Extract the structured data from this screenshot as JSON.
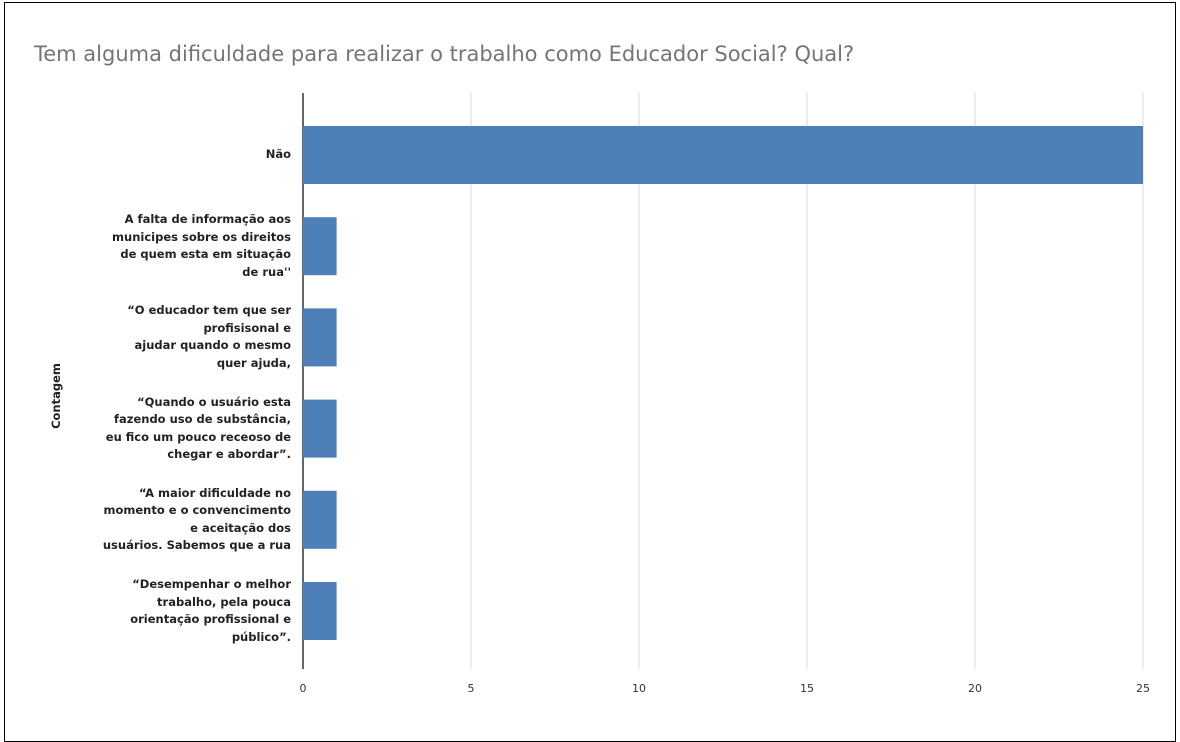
{
  "chart_data": {
    "type": "bar",
    "orientation": "horizontal",
    "title": "Tem alguma dificuldade para realizar o trabalho como Educador Social? Qual?",
    "ylabel": "Contagem",
    "xlabel": "",
    "categories": [
      [
        "Não"
      ],
      [
        "A falta de informação aos",
        "municipes sobre os direitos",
        "de quem esta em situação",
        "de rua''"
      ],
      [
        "“O educador tem que ser",
        "profisisonal e",
        "ajudar  quando o mesmo",
        "quer ajuda,"
      ],
      [
        "“Quando o usuário esta",
        "fazendo uso de substância,",
        "eu fico um pouco receoso de",
        "chegar e abordar”."
      ],
      [
        "“A maior dificuldade no",
        "momento e o convencimento",
        "e aceitação dos",
        "usuários. Sabemos que a rua"
      ],
      [
        "“Desempenhar o melhor",
        "trabalho, pela pouca",
        "orientação profissional e",
        "público”."
      ]
    ],
    "values": [
      25,
      1,
      1,
      1,
      1,
      1
    ],
    "xlim": [
      0,
      25
    ],
    "xticks": [
      0,
      5,
      10,
      15,
      20,
      25
    ],
    "grid": true,
    "bar_color": "#4f7fb9",
    "gridline_color": "#d9d9d9"
  }
}
